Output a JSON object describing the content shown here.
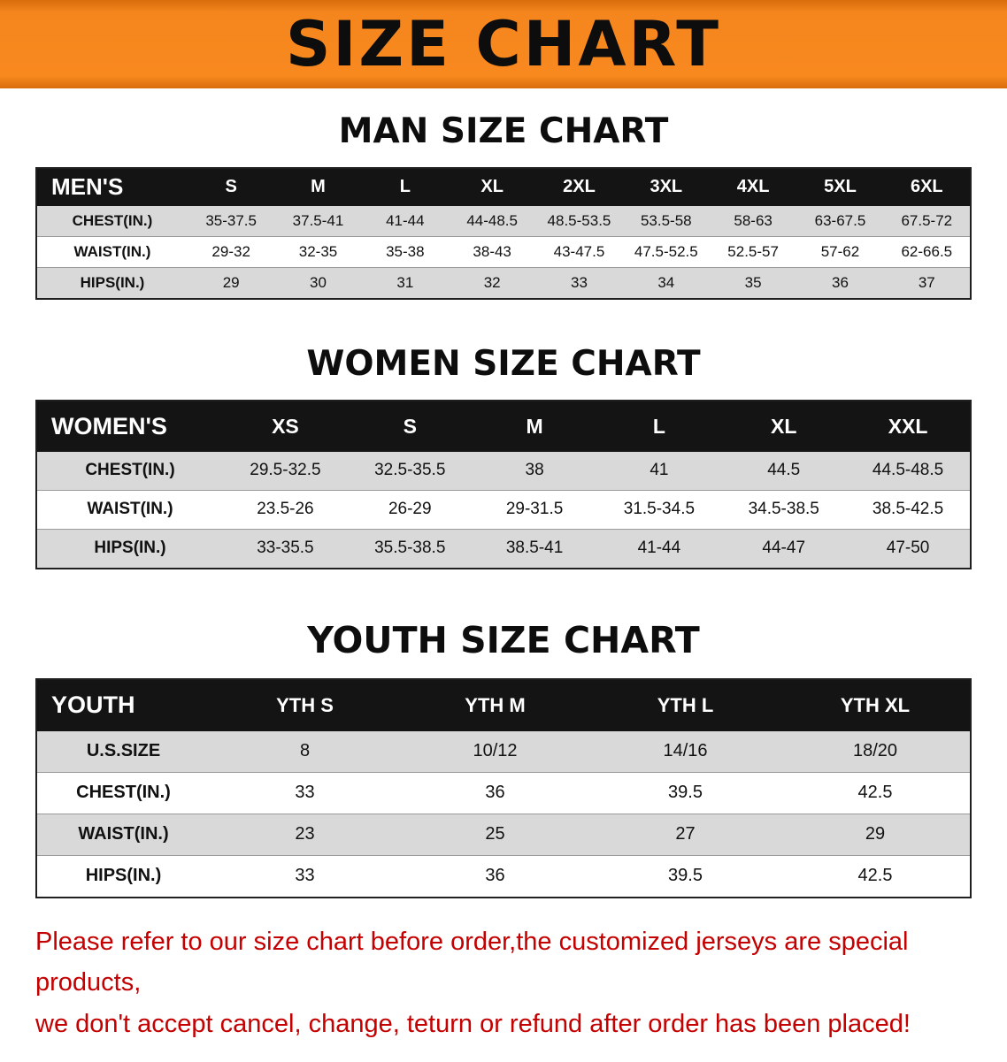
{
  "banner": {
    "title": "SIZE CHART"
  },
  "colors": {
    "banner_orange": "#f5861e",
    "table_header_black": "#141414",
    "row_stripe_gray": "#d9d9d9",
    "disclaimer_red": "#c40000"
  },
  "sections": [
    {
      "heading": "MAN SIZE CHART",
      "header": [
        "MEN'S",
        "S",
        "M",
        "L",
        "XL",
        "2XL",
        "3XL",
        "4XL",
        "5XL",
        "6XL"
      ],
      "rows": [
        [
          "CHEST(IN.)",
          "35-37.5",
          "37.5-41",
          "41-44",
          "44-48.5",
          "48.5-53.5",
          "53.5-58",
          "58-63",
          "63-67.5",
          "67.5-72"
        ],
        [
          "WAIST(IN.)",
          "29-32",
          "32-35",
          "35-38",
          "38-43",
          "43-47.5",
          "47.5-52.5",
          "52.5-57",
          "57-62",
          "62-66.5"
        ],
        [
          "HIPS(IN.)",
          "29",
          "30",
          "31",
          "32",
          "33",
          "34",
          "35",
          "36",
          "37"
        ]
      ]
    },
    {
      "heading": "WOMEN SIZE CHART",
      "header": [
        "WOMEN'S",
        "XS",
        "S",
        "M",
        "L",
        "XL",
        "XXL"
      ],
      "rows": [
        [
          "CHEST(IN.)",
          "29.5-32.5",
          "32.5-35.5",
          "38",
          "41",
          "44.5",
          "44.5-48.5"
        ],
        [
          "WAIST(IN.)",
          "23.5-26",
          "26-29",
          "29-31.5",
          "31.5-34.5",
          "34.5-38.5",
          "38.5-42.5"
        ],
        [
          "HIPS(IN.)",
          "33-35.5",
          "35.5-38.5",
          "38.5-41",
          "41-44",
          "44-47",
          "47-50"
        ]
      ]
    },
    {
      "heading": "YOUTH SIZE CHART",
      "header": [
        "YOUTH",
        "YTH S",
        "YTH M",
        "YTH L",
        "YTH XL"
      ],
      "rows": [
        [
          "U.S.SIZE",
          "8",
          "10/12",
          "14/16",
          "18/20"
        ],
        [
          "CHEST(IN.)",
          "33",
          "36",
          "39.5",
          "42.5"
        ],
        [
          "WAIST(IN.)",
          "23",
          "25",
          "27",
          "29"
        ],
        [
          "HIPS(IN.)",
          "33",
          "36",
          "39.5",
          "42.5"
        ]
      ]
    }
  ],
  "disclaimer": {
    "line1": "Please refer to our size chart before order,the customized jerseys are special products,",
    "line2": "we don't accept cancel, change, teturn or refund after order has been placed!"
  }
}
